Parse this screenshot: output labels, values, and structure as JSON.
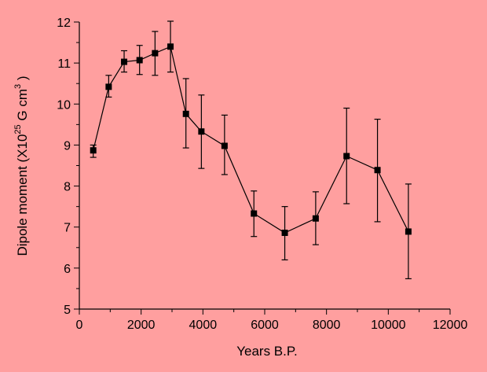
{
  "colors": {
    "background": "#ff9f9f",
    "ink": "#000000"
  },
  "chart_data": {
    "type": "scatter",
    "connected": true,
    "marker": "square",
    "error_bars": true,
    "title": "",
    "xlabel": "Years B.P.",
    "ylabel": {
      "prefix": "Dipole moment (X10",
      "exp1": "25",
      "middle": " G cm",
      "exp2": "3",
      "suffix": " )"
    },
    "xlim": [
      0,
      12000
    ],
    "ylim": [
      5,
      12
    ],
    "xticks": [
      0,
      2000,
      4000,
      6000,
      8000,
      10000,
      12000
    ],
    "yticks": [
      5,
      6,
      7,
      8,
      9,
      10,
      11,
      12
    ],
    "x_minor_step": 1000,
    "y_minor_step": 0.5,
    "grid": false,
    "points": [
      {
        "x": 450,
        "y": 8.87,
        "err_low": 8.7,
        "err_high": 9.0
      },
      {
        "x": 950,
        "y": 10.42,
        "err_low": 10.17,
        "err_high": 10.7
      },
      {
        "x": 1450,
        "y": 11.03,
        "err_low": 10.78,
        "err_high": 11.3
      },
      {
        "x": 1950,
        "y": 11.07,
        "err_low": 10.72,
        "err_high": 11.43
      },
      {
        "x": 2450,
        "y": 11.24,
        "err_low": 10.7,
        "err_high": 11.77
      },
      {
        "x": 2950,
        "y": 11.4,
        "err_low": 10.78,
        "err_high": 12.02
      },
      {
        "x": 3450,
        "y": 9.76,
        "err_low": 8.93,
        "err_high": 10.62
      },
      {
        "x": 3950,
        "y": 9.33,
        "err_low": 8.43,
        "err_high": 10.22
      },
      {
        "x": 4700,
        "y": 8.98,
        "err_low": 8.28,
        "err_high": 9.73
      },
      {
        "x": 5650,
        "y": 7.33,
        "err_low": 6.77,
        "err_high": 7.88
      },
      {
        "x": 6650,
        "y": 6.86,
        "err_low": 6.2,
        "err_high": 7.5
      },
      {
        "x": 7650,
        "y": 7.21,
        "err_low": 6.57,
        "err_high": 7.86
      },
      {
        "x": 8650,
        "y": 8.73,
        "err_low": 7.57,
        "err_high": 9.9
      },
      {
        "x": 9650,
        "y": 8.39,
        "err_low": 7.13,
        "err_high": 9.63
      },
      {
        "x": 10650,
        "y": 6.89,
        "err_low": 5.74,
        "err_high": 8.05
      }
    ]
  }
}
